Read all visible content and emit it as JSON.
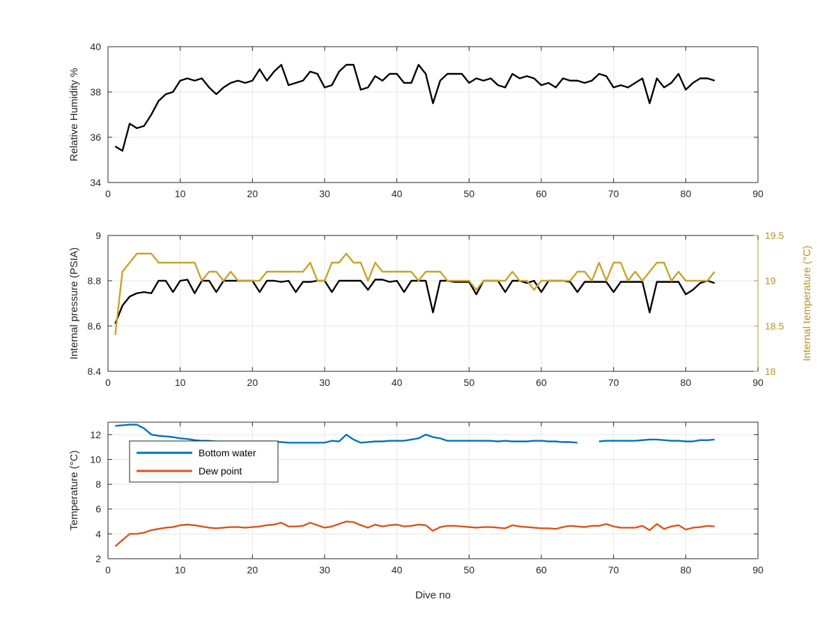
{
  "chart_data": [
    {
      "type": "line",
      "title": "",
      "xlabel": "",
      "ylabel": "Relative Humidity %",
      "xlim": [
        0,
        90
      ],
      "ylim": [
        34,
        40
      ],
      "xticks": [
        0,
        10,
        20,
        30,
        40,
        50,
        60,
        70,
        80,
        90
      ],
      "yticks": [
        34,
        36,
        38,
        40
      ],
      "grid": true,
      "series": [
        {
          "color": "#000000",
          "x": [
            1,
            2,
            3,
            4,
            5,
            6,
            7,
            8,
            9,
            10,
            11,
            12,
            13,
            14,
            15,
            16,
            17,
            18,
            19,
            20,
            21,
            22,
            23,
            24,
            25,
            26,
            27,
            28,
            29,
            30,
            31,
            32,
            33,
            34,
            35,
            36,
            37,
            38,
            39,
            40,
            41,
            42,
            43,
            44,
            45,
            46,
            47,
            48,
            49,
            50,
            51,
            52,
            53,
            54,
            55,
            56,
            57,
            58,
            59,
            60,
            61,
            62,
            63,
            64,
            65,
            66,
            67,
            68,
            69,
            70,
            71,
            72,
            73,
            74,
            75,
            76,
            77,
            78,
            79,
            80,
            81,
            82,
            83,
            84
          ],
          "values": [
            35.6,
            35.4,
            36.6,
            36.4,
            36.5,
            37.0,
            37.6,
            37.9,
            38.0,
            38.5,
            38.6,
            38.5,
            38.6,
            38.2,
            37.9,
            38.2,
            38.4,
            38.5,
            38.4,
            38.5,
            39.0,
            38.5,
            38.9,
            39.2,
            38.3,
            38.4,
            38.5,
            38.9,
            38.8,
            38.2,
            38.3,
            38.9,
            39.2,
            39.2,
            38.1,
            38.2,
            38.7,
            38.5,
            38.8,
            38.8,
            38.4,
            38.4,
            39.2,
            38.8,
            37.5,
            38.5,
            38.8,
            38.8,
            38.8,
            38.4,
            38.6,
            38.5,
            38.6,
            38.3,
            38.2,
            38.8,
            38.6,
            38.7,
            38.6,
            38.3,
            38.4,
            38.2,
            38.6,
            38.5,
            38.5,
            38.4,
            38.5,
            38.8,
            38.7,
            38.2,
            38.3,
            38.2,
            38.4,
            38.6,
            37.5,
            38.6,
            38.2,
            38.4,
            38.8,
            38.1,
            38.4,
            38.6,
            38.6,
            38.5
          ]
        }
      ]
    },
    {
      "type": "line",
      "title": "",
      "xlabel": "",
      "ylabel": "Internal pressure (PSIA)",
      "ylabel_right": "Internal temperature (°C)",
      "xlim": [
        0,
        90
      ],
      "ylim": [
        8.4,
        9.0
      ],
      "ylim_right": [
        18,
        19.5
      ],
      "xticks": [
        0,
        10,
        20,
        30,
        40,
        50,
        60,
        70,
        80,
        90
      ],
      "yticks": [
        "8.4",
        "8.6",
        "8.8",
        "9"
      ],
      "yticks_right": [
        "18",
        "18.5",
        "19",
        "19.5"
      ],
      "grid": true,
      "series": [
        {
          "axis": "left",
          "color": "#000000",
          "x": [
            1,
            2,
            3,
            4,
            5,
            6,
            7,
            8,
            9,
            10,
            11,
            12,
            13,
            14,
            15,
            16,
            17,
            18,
            19,
            20,
            21,
            22,
            23,
            24,
            25,
            26,
            27,
            28,
            29,
            30,
            31,
            32,
            33,
            34,
            35,
            36,
            37,
            38,
            39,
            40,
            41,
            42,
            43,
            44,
            45,
            46,
            47,
            48,
            49,
            50,
            51,
            52,
            53,
            54,
            55,
            56,
            57,
            58,
            59,
            60,
            61,
            62,
            63,
            64,
            65,
            66,
            67,
            68,
            69,
            70,
            71,
            72,
            73,
            74,
            75,
            76,
            77,
            78,
            79,
            80,
            81,
            82,
            83,
            84
          ],
          "values": [
            8.61,
            8.69,
            8.73,
            8.745,
            8.75,
            8.745,
            8.8,
            8.8,
            8.75,
            8.8,
            8.805,
            8.745,
            8.8,
            8.8,
            8.75,
            8.8,
            8.8,
            8.8,
            8.8,
            8.8,
            8.75,
            8.8,
            8.8,
            8.795,
            8.8,
            8.75,
            8.795,
            8.795,
            8.8,
            8.8,
            8.75,
            8.8,
            8.8,
            8.8,
            8.8,
            8.76,
            8.805,
            8.805,
            8.795,
            8.8,
            8.75,
            8.8,
            8.8,
            8.8,
            8.66,
            8.8,
            8.8,
            8.795,
            8.795,
            8.795,
            8.74,
            8.8,
            8.8,
            8.8,
            8.75,
            8.8,
            8.8,
            8.79,
            8.8,
            8.75,
            8.8,
            8.8,
            8.8,
            8.795,
            8.75,
            8.795,
            8.795,
            8.795,
            8.795,
            8.75,
            8.795,
            8.795,
            8.795,
            8.795,
            8.66,
            8.795,
            8.795,
            8.795,
            8.795,
            8.74,
            8.76,
            8.79,
            8.8,
            8.79
          ]
        },
        {
          "axis": "right",
          "color": "#C9A227",
          "x": [
            1,
            2,
            3,
            4,
            5,
            6,
            7,
            8,
            9,
            10,
            11,
            12,
            13,
            14,
            15,
            16,
            17,
            18,
            19,
            20,
            21,
            22,
            23,
            24,
            25,
            26,
            27,
            28,
            29,
            30,
            31,
            32,
            33,
            34,
            35,
            36,
            37,
            38,
            39,
            40,
            41,
            42,
            43,
            44,
            45,
            46,
            47,
            48,
            49,
            50,
            51,
            52,
            53,
            54,
            55,
            56,
            57,
            58,
            59,
            60,
            61,
            62,
            63,
            64,
            65,
            66,
            67,
            68,
            69,
            70,
            71,
            72,
            73,
            74,
            75,
            76,
            77,
            78,
            79,
            80,
            81,
            82,
            83,
            84
          ],
          "values": [
            18.4,
            19.1,
            19.2,
            19.3,
            19.3,
            19.3,
            19.2,
            19.2,
            19.2,
            19.2,
            19.2,
            19.2,
            19.0,
            19.1,
            19.1,
            19.0,
            19.1,
            19.0,
            19.0,
            19.0,
            19.0,
            19.1,
            19.1,
            19.1,
            19.1,
            19.1,
            19.1,
            19.2,
            19.0,
            19.0,
            19.2,
            19.2,
            19.3,
            19.2,
            19.2,
            19.0,
            19.2,
            19.1,
            19.1,
            19.1,
            19.1,
            19.1,
            19.0,
            19.1,
            19.1,
            19.1,
            19.0,
            19.0,
            19.0,
            19.0,
            18.9,
            19.0,
            19.0,
            19.0,
            19.0,
            19.1,
            19.0,
            19.0,
            18.9,
            19.0,
            19.0,
            19.0,
            19.0,
            19.0,
            19.1,
            19.1,
            19.0,
            19.2,
            19.0,
            19.2,
            19.2,
            19.0,
            19.1,
            19.0,
            19.1,
            19.2,
            19.2,
            19.0,
            19.1,
            19.0,
            19.0,
            19.0,
            19.0,
            19.1
          ]
        }
      ]
    },
    {
      "type": "line",
      "title": "",
      "xlabel": "Dive no",
      "ylabel": "Temperature (°C)",
      "xlim": [
        0,
        90
      ],
      "ylim": [
        2,
        13
      ],
      "xticks": [
        0,
        10,
        20,
        30,
        40,
        50,
        60,
        70,
        80,
        90
      ],
      "yticks": [
        2,
        4,
        6,
        8,
        10,
        12
      ],
      "grid": true,
      "legend_position": "top-left",
      "series": [
        {
          "name": "Bottom water",
          "color": "#0072BD",
          "x": [
            1,
            2,
            3,
            4,
            5,
            6,
            7,
            8,
            9,
            10,
            11,
            12,
            13,
            14,
            15,
            16,
            17,
            18,
            19,
            20,
            21,
            22,
            23,
            24,
            25,
            26,
            27,
            28,
            29,
            30,
            31,
            32,
            33,
            34,
            35,
            36,
            37,
            38,
            39,
            40,
            41,
            42,
            43,
            44,
            45,
            46,
            47,
            48,
            49,
            50,
            51,
            52,
            53,
            54,
            55,
            56,
            57,
            58,
            59,
            60,
            61,
            62,
            63,
            64,
            65,
            66,
            67,
            68,
            69,
            70,
            71,
            72,
            73,
            74,
            75,
            76,
            77,
            78,
            79,
            80,
            81,
            82,
            83,
            84
          ],
          "values": [
            12.7,
            12.75,
            12.8,
            12.8,
            12.5,
            12.0,
            11.9,
            11.85,
            11.8,
            11.7,
            11.65,
            11.55,
            11.5,
            11.5,
            11.45,
            11.45,
            11.45,
            11.45,
            11.45,
            11.45,
            11.45,
            11.45,
            11.45,
            11.4,
            11.35,
            11.35,
            11.35,
            11.35,
            11.35,
            11.35,
            11.5,
            11.45,
            12.0,
            11.6,
            11.35,
            11.4,
            11.45,
            11.45,
            11.5,
            11.5,
            11.5,
            11.6,
            11.7,
            12.0,
            11.8,
            11.7,
            11.5,
            11.5,
            11.5,
            11.5,
            11.5,
            11.5,
            11.5,
            11.45,
            11.5,
            11.45,
            11.45,
            11.45,
            11.5,
            11.5,
            11.45,
            11.45,
            11.4,
            11.4,
            11.35,
            null,
            null,
            11.45,
            11.5,
            11.5,
            11.5,
            11.5,
            11.5,
            11.55,
            11.6,
            11.6,
            11.55,
            11.5,
            11.5,
            11.45,
            11.45,
            11.55,
            11.55,
            11.6
          ]
        },
        {
          "name": "Dew point",
          "color": "#D95319",
          "x": [
            1,
            2,
            3,
            4,
            5,
            6,
            7,
            8,
            9,
            10,
            11,
            12,
            13,
            14,
            15,
            16,
            17,
            18,
            19,
            20,
            21,
            22,
            23,
            24,
            25,
            26,
            27,
            28,
            29,
            30,
            31,
            32,
            33,
            34,
            35,
            36,
            37,
            38,
            39,
            40,
            41,
            42,
            43,
            44,
            45,
            46,
            47,
            48,
            49,
            50,
            51,
            52,
            53,
            54,
            55,
            56,
            57,
            58,
            59,
            60,
            61,
            62,
            63,
            64,
            65,
            66,
            67,
            68,
            69,
            70,
            71,
            72,
            73,
            74,
            75,
            76,
            77,
            78,
            79,
            80,
            81,
            82,
            83,
            84
          ],
          "values": [
            3.0,
            3.5,
            4.0,
            4.0,
            4.1,
            4.3,
            4.4,
            4.5,
            4.55,
            4.7,
            4.75,
            4.7,
            4.6,
            4.5,
            4.45,
            4.5,
            4.55,
            4.55,
            4.5,
            4.55,
            4.6,
            4.7,
            4.75,
            4.9,
            4.6,
            4.6,
            4.65,
            4.9,
            4.7,
            4.5,
            4.6,
            4.8,
            5.0,
            4.95,
            4.7,
            4.5,
            4.75,
            4.6,
            4.7,
            4.75,
            4.6,
            4.65,
            4.75,
            4.7,
            4.25,
            4.55,
            4.65,
            4.65,
            4.6,
            4.55,
            4.5,
            4.55,
            4.55,
            4.5,
            4.45,
            4.7,
            4.6,
            4.55,
            4.5,
            4.45,
            4.45,
            4.4,
            4.55,
            4.65,
            4.6,
            4.55,
            4.65,
            4.65,
            4.8,
            4.6,
            4.5,
            4.5,
            4.5,
            4.65,
            4.3,
            4.8,
            4.4,
            4.6,
            4.7,
            4.35,
            4.5,
            4.55,
            4.65,
            4.6
          ]
        }
      ]
    }
  ]
}
